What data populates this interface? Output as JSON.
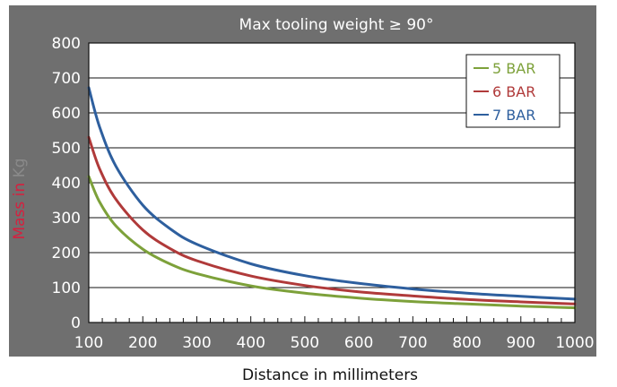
{
  "chart_data": {
    "type": "line",
    "title": "Max tooling weight  ≥ 90°",
    "xlabel": "Distance in millimeters",
    "ylabel_prefix": "Mass in ",
    "ylabel_unit": "Kg",
    "xlim": [
      100,
      1000
    ],
    "ylim": [
      0,
      800
    ],
    "xticks": [
      "100",
      "200",
      "300",
      "400",
      "500",
      "600",
      "700",
      "800",
      "900",
      "1000"
    ],
    "yticks": [
      "0",
      "100",
      "200",
      "300",
      "400",
      "500",
      "600",
      "700",
      "800"
    ],
    "grid": true,
    "legend_position": "top-right",
    "colors": {
      "frame": "#6f6f6f",
      "plot_area": "#ffffff",
      "ylabel_prefix": "#d6203f",
      "ylabel_unit": "#8a8a8a"
    },
    "series": [
      {
        "name": "5 BAR",
        "color": "#7da13a",
        "x": [
          100,
          120,
          150,
          200,
          250,
          300,
          400,
          500,
          600,
          700,
          800,
          900,
          1000
        ],
        "y": [
          418,
          345,
          277,
          210,
          168,
          140,
          105,
          84,
          70,
          60,
          53,
          47,
          42
        ]
      },
      {
        "name": "6 BAR",
        "color": "#b03a3a",
        "x": [
          100,
          120,
          150,
          200,
          250,
          300,
          400,
          500,
          600,
          700,
          800,
          900,
          1000
        ],
        "y": [
          530,
          440,
          353,
          265,
          212,
          177,
          133,
          106,
          88,
          76,
          66,
          59,
          53
        ]
      },
      {
        "name": "7 BAR",
        "color": "#2e5f9e",
        "x": [
          100,
          120,
          150,
          200,
          250,
          300,
          400,
          500,
          600,
          700,
          800,
          900,
          1000
        ],
        "y": [
          672,
          560,
          448,
          336,
          269,
          224,
          168,
          134,
          112,
          96,
          84,
          75,
          67
        ]
      }
    ]
  }
}
